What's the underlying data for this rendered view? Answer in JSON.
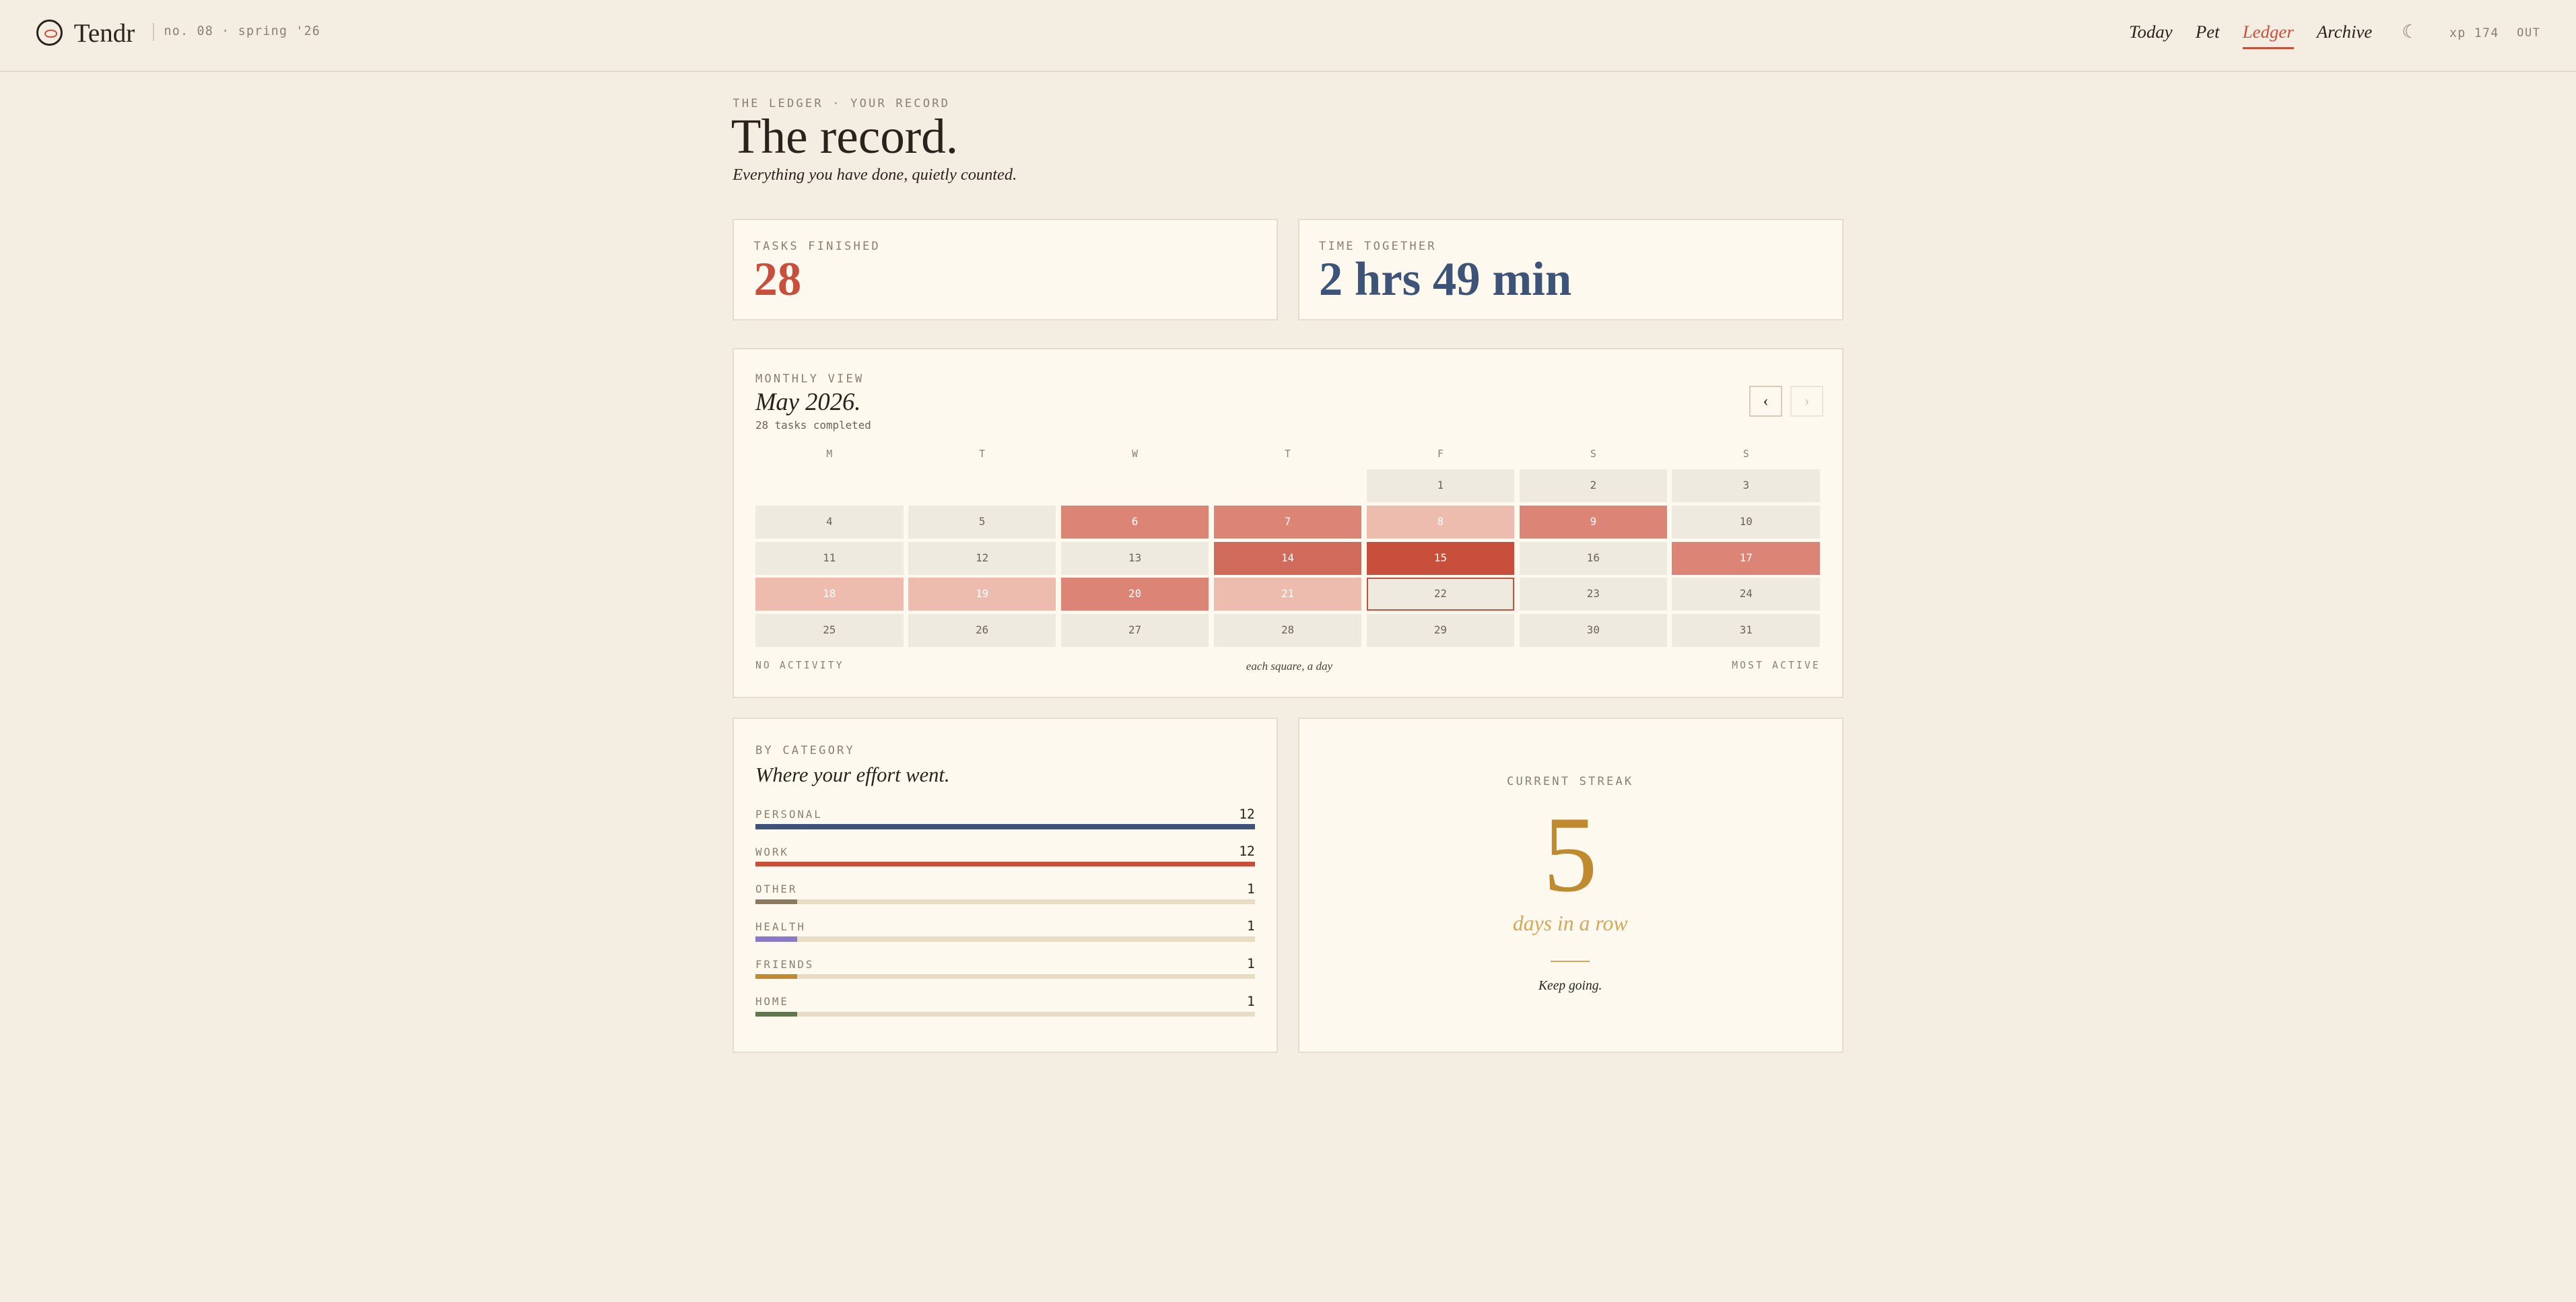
{
  "header": {
    "brand": "Tendr",
    "issue": "no. 08 · spring '26",
    "nav": [
      "Today",
      "Pet",
      "Ledger",
      "Archive"
    ],
    "active_nav": 2,
    "theme_icon": "☾",
    "xp": "xp 174",
    "logout": "OUT"
  },
  "intro": {
    "eyebrow": "THE LEDGER · YOUR RECORD",
    "title": "The record.",
    "subtitle": "Everything you have done, quietly counted."
  },
  "stats": [
    {
      "label": "TASKS FINISHED",
      "value": "28",
      "color": "#c94f3d"
    },
    {
      "label": "TIME TOGETHER",
      "value": "2 hrs 49 min",
      "color": "#3d5478"
    }
  ],
  "calendar": {
    "eyebrow": "MONTHLY VIEW",
    "title": "May 2026.",
    "summary": "28 tasks completed",
    "prev": "‹",
    "next": "›",
    "weekdays": [
      "M",
      "T",
      "W",
      "T",
      "F",
      "S",
      "S"
    ],
    "weeks": [
      [
        null,
        null,
        null,
        null,
        {
          "day": "1",
          "level": 0
        },
        {
          "day": "2",
          "level": 0
        },
        {
          "day": "3",
          "level": 0
        }
      ],
      [
        {
          "day": "4",
          "level": 0
        },
        {
          "day": "5",
          "level": 0
        },
        {
          "day": "6",
          "level": 3
        },
        {
          "day": "7",
          "level": 3
        },
        {
          "day": "8",
          "level": 1
        },
        {
          "day": "9",
          "level": 3
        },
        {
          "day": "10",
          "level": 0
        }
      ],
      [
        {
          "day": "11",
          "level": 0
        },
        {
          "day": "12",
          "level": 0
        },
        {
          "day": "13",
          "level": 0
        },
        {
          "day": "14",
          "level": 4
        },
        {
          "day": "15",
          "level": 5
        },
        {
          "day": "16",
          "level": 0
        },
        {
          "day": "17",
          "level": 3
        }
      ],
      [
        {
          "day": "18",
          "level": 1
        },
        {
          "day": "19",
          "level": 1
        },
        {
          "day": "20",
          "level": 3
        },
        {
          "day": "21",
          "level": 1
        },
        {
          "day": "22",
          "level": 0,
          "today": true
        },
        {
          "day": "23",
          "level": 0
        },
        {
          "day": "24",
          "level": 0
        }
      ],
      [
        {
          "day": "25",
          "level": 0
        },
        {
          "day": "26",
          "level": 0
        },
        {
          "day": "27",
          "level": 0
        },
        {
          "day": "28",
          "level": 0
        },
        {
          "day": "29",
          "level": 0
        },
        {
          "day": "30",
          "level": 0
        },
        {
          "day": "31",
          "level": 0
        }
      ]
    ],
    "level_colors": [
      "#eeeadf",
      "#edbcae",
      "#e3a090",
      "#dc8475",
      "#d06a5a",
      "#c94f3d"
    ],
    "legend": {
      "low": "NO ACTIVITY",
      "caption": "each square, a day",
      "high": "MOST ACTIVE"
    }
  },
  "categories": {
    "eyebrow": "BY CATEGORY",
    "title": "Where your effort went.",
    "items": [
      {
        "name": "PERSONAL",
        "count": 12,
        "color": "#3d5478"
      },
      {
        "name": "WORK",
        "count": 12,
        "color": "#c94f3d"
      },
      {
        "name": "OTHER",
        "count": 1,
        "color": "#8a7a62"
      },
      {
        "name": "HEALTH",
        "count": 1,
        "color": "#8a79c9"
      },
      {
        "name": "FRIENDS",
        "count": 1,
        "color": "#c08a2e"
      },
      {
        "name": "HOME",
        "count": 1,
        "color": "#5c7a47"
      }
    ]
  },
  "streak": {
    "eyebrow": "CURRENT STREAK",
    "value": "5",
    "unit": "days in a row",
    "note": "Keep going."
  }
}
